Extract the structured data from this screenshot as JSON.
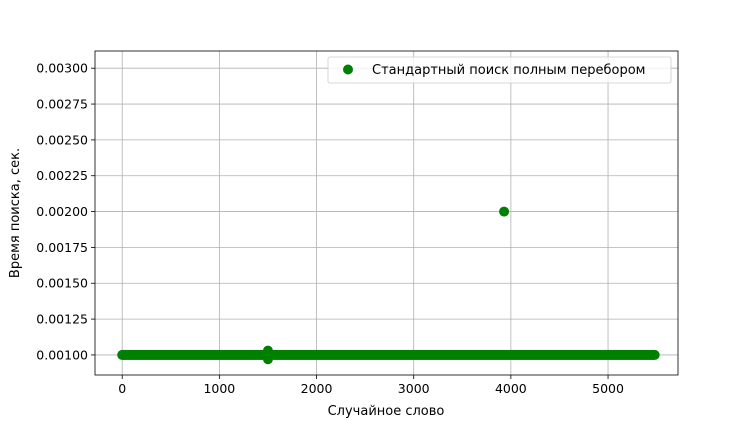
{
  "chart_data": {
    "type": "scatter",
    "title": "",
    "xlabel": "Случайное слово",
    "ylabel": "Время поиска, сек.",
    "xlim": [
      -280,
      5720
    ],
    "ylim": [
      0.00086,
      0.00312
    ],
    "xticks": [
      0,
      1000,
      2000,
      3000,
      4000,
      5000
    ],
    "xtick_labels": [
      "0",
      "1000",
      "2000",
      "3000",
      "4000",
      "5000"
    ],
    "yticks": [
      0.001,
      0.00125,
      0.0015,
      0.00175,
      0.002,
      0.00225,
      0.0025,
      0.00275,
      0.003
    ],
    "ytick_labels": [
      "0.00100",
      "0.00125",
      "0.00150",
      "0.00175",
      "0.00200",
      "0.00225",
      "0.00250",
      "0.00275",
      "0.00300"
    ],
    "grid": true,
    "legend_position": "top-right",
    "series": [
      {
        "name": "Стандартный поиск полным перебором",
        "color": "#008000",
        "marker": "circle",
        "baseline": {
          "x_start": 0,
          "x_end": 5480,
          "y": 0.001
        },
        "points": [
          {
            "x": 1500,
            "y": 0.00103
          },
          {
            "x": 1500,
            "y": 0.00097
          },
          {
            "x": 3930,
            "y": 0.002
          }
        ]
      }
    ]
  }
}
